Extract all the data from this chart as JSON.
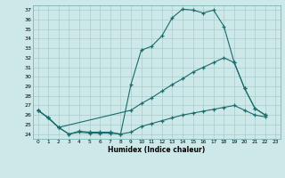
{
  "xlabel": "Humidex (Indice chaleur)",
  "bg_color": "#cce8e8",
  "grid_color": "#aacccc",
  "line_color": "#1a6b6b",
  "xlim": [
    -0.5,
    23.5
  ],
  "ylim": [
    23.5,
    37.5
  ],
  "yticks": [
    24,
    25,
    26,
    27,
    28,
    29,
    30,
    31,
    32,
    33,
    34,
    35,
    36,
    37
  ],
  "xticks": [
    0,
    1,
    2,
    3,
    4,
    5,
    6,
    7,
    8,
    9,
    10,
    11,
    12,
    13,
    14,
    15,
    16,
    17,
    18,
    19,
    20,
    21,
    22,
    23
  ],
  "line1_x": [
    0,
    1,
    2,
    3,
    4,
    5,
    6,
    7,
    8,
    9,
    10,
    11,
    12,
    13,
    14,
    15,
    16,
    17,
    18,
    19,
    20,
    21,
    22
  ],
  "line1_y": [
    26.5,
    25.7,
    24.7,
    24.0,
    24.2,
    24.1,
    24.1,
    24.1,
    24.0,
    29.2,
    32.8,
    33.2,
    34.3,
    36.2,
    37.1,
    37.0,
    36.7,
    37.0,
    35.3,
    31.5,
    28.8,
    26.7,
    26.0
  ],
  "line2_x": [
    0,
    1,
    2,
    9,
    10,
    11,
    12,
    13,
    14,
    15,
    16,
    17,
    18,
    19,
    20,
    21,
    22
  ],
  "line2_y": [
    26.5,
    25.7,
    24.7,
    26.5,
    27.2,
    27.8,
    28.5,
    29.2,
    29.8,
    30.5,
    31.0,
    31.5,
    32.0,
    31.5,
    28.8,
    26.7,
    26.0
  ],
  "line3_x": [
    0,
    1,
    2,
    3,
    4,
    5,
    6,
    7,
    8,
    9,
    10,
    11,
    12,
    13,
    14,
    15,
    16,
    17,
    18,
    19,
    20,
    21,
    22
  ],
  "line3_y": [
    26.5,
    25.7,
    24.7,
    24.0,
    24.3,
    24.2,
    24.2,
    24.2,
    24.0,
    24.2,
    24.8,
    25.1,
    25.4,
    25.7,
    26.0,
    26.2,
    26.4,
    26.6,
    26.8,
    27.0,
    26.5,
    26.0,
    25.8
  ]
}
